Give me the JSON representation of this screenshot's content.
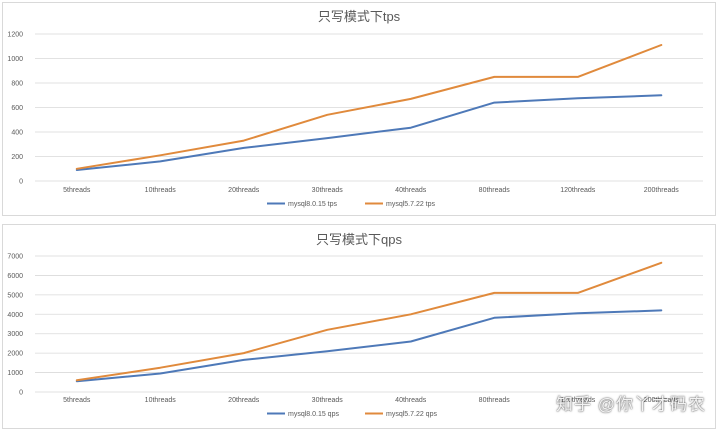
{
  "colors": {
    "series_1": "#4e79b8",
    "series_2": "#e08a3c",
    "grid": "#d9d9d9",
    "text": "#595959"
  },
  "chart_data": [
    {
      "type": "line",
      "title": "只写模式下tps",
      "categories": [
        "5threads",
        "10threads",
        "20threads",
        "30threads",
        "40threads",
        "80threads",
        "120threads",
        "200threads"
      ],
      "yticks": [
        "0",
        "200",
        "400",
        "600",
        "800",
        "1000",
        "1200"
      ],
      "ylim": [
        0,
        1200
      ],
      "grid": true,
      "legend_position": "bottom",
      "series": [
        {
          "name": "mysql8.0.15 tps",
          "values": [
            90,
            160,
            270,
            350,
            435,
            640,
            675,
            700
          ]
        },
        {
          "name": "mysql5.7.22 tps",
          "values": [
            100,
            210,
            330,
            540,
            670,
            850,
            850,
            1110
          ]
        }
      ]
    },
    {
      "type": "line",
      "title": "只写模式下qps",
      "categories": [
        "5threads",
        "10threads",
        "20threads",
        "30threads",
        "40threads",
        "80threads",
        "120threads",
        "200threads"
      ],
      "yticks": [
        "0",
        "1000",
        "2000",
        "3000",
        "4000",
        "5000",
        "6000",
        "7000"
      ],
      "ylim": [
        0,
        7000
      ],
      "grid": true,
      "legend_position": "bottom",
      "series": [
        {
          "name": "mysql8.0.15 qps",
          "values": [
            550,
            950,
            1650,
            2100,
            2600,
            3820,
            4050,
            4200
          ]
        },
        {
          "name": "mysql5.7.22 qps",
          "values": [
            600,
            1250,
            2000,
            3200,
            4000,
            5100,
            5100,
            6650
          ]
        }
      ]
    }
  ],
  "watermark": "知乎 @你丫才码农"
}
